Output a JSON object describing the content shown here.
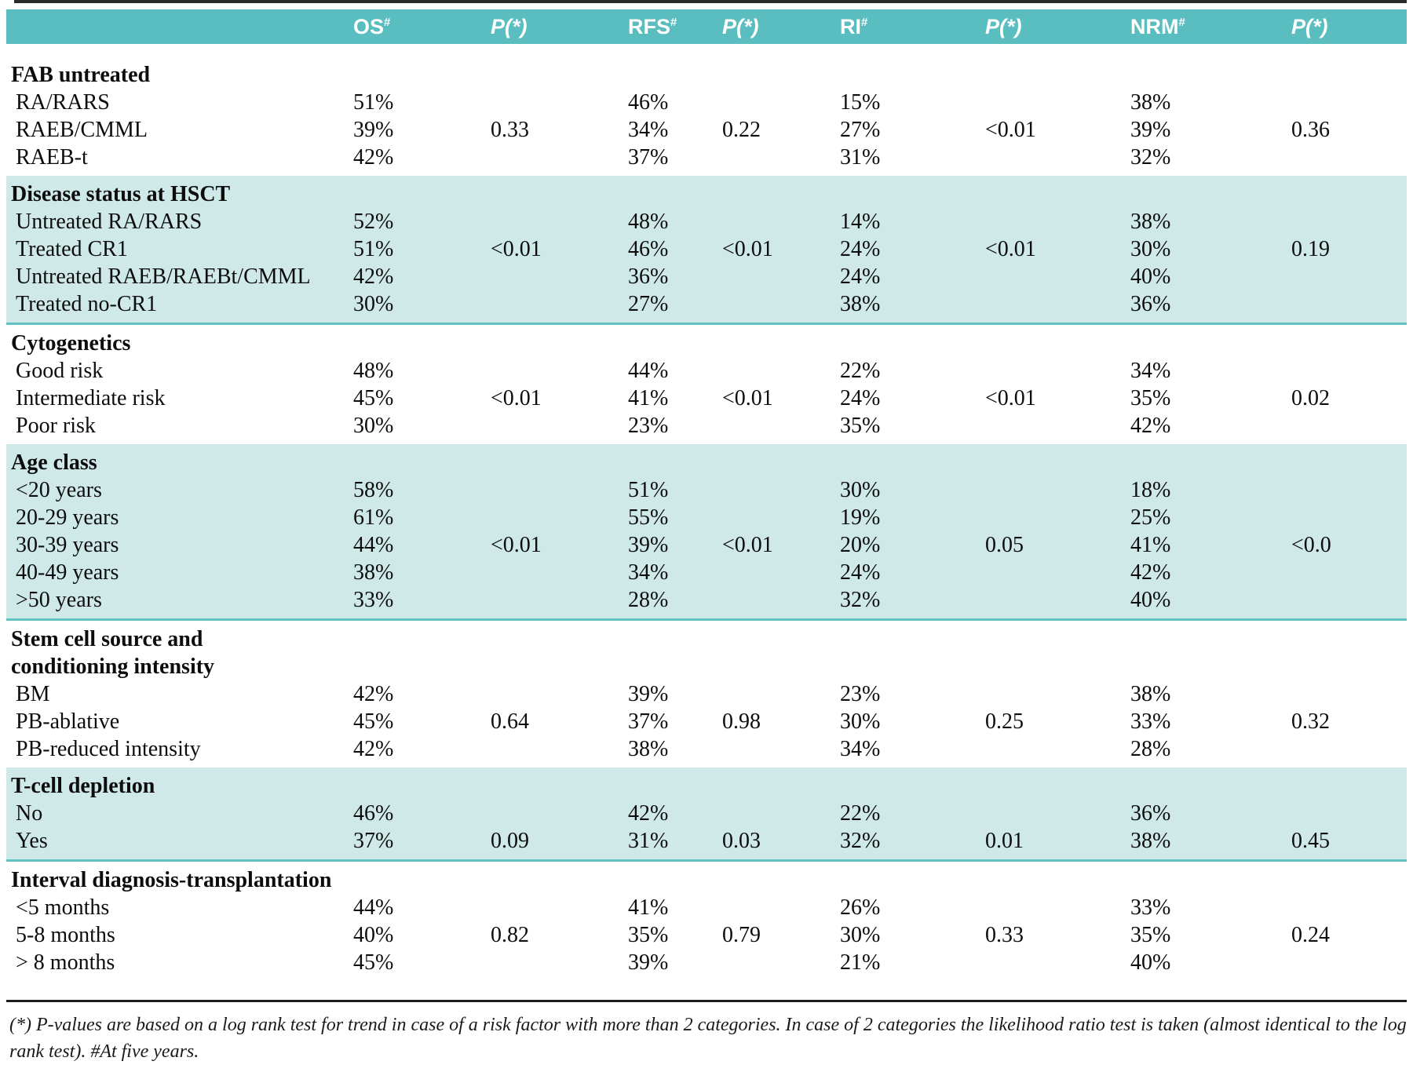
{
  "colors": {
    "header_bg": "#5abdbf",
    "band_bg": "#cfe9e9",
    "band_border": "#63c2c4",
    "rule": "#2b2b2b"
  },
  "table": {
    "columns": [
      {
        "label": "OS",
        "sup": "#",
        "italic": false
      },
      {
        "label": "P(*)",
        "sup": "",
        "italic": true
      },
      {
        "label": "RFS",
        "sup": "#",
        "italic": false
      },
      {
        "label": "P(*)",
        "sup": "",
        "italic": true
      },
      {
        "label": "RI",
        "sup": "#",
        "italic": false
      },
      {
        "label": "P(*)",
        "sup": "",
        "italic": true
      },
      {
        "label": "NRM",
        "sup": "#",
        "italic": false
      },
      {
        "label": "P(*)",
        "sup": "",
        "italic": true
      }
    ],
    "sections": [
      {
        "title_lines": [
          "FAB untreated"
        ],
        "shaded": false,
        "rows": [
          {
            "label": "RA/RARS",
            "values": [
              "51%",
              "",
              "46%",
              "",
              "15%",
              "",
              "38%",
              ""
            ]
          },
          {
            "label": "RAEB/CMML",
            "values": [
              "39%",
              "0.33",
              "34%",
              "0.22",
              "27%",
              "<0.01",
              "39%",
              "0.36"
            ]
          },
          {
            "label": "RAEB-t",
            "values": [
              "42%",
              "",
              "37%",
              "",
              "31%",
              "",
              "32%",
              ""
            ]
          }
        ]
      },
      {
        "title_lines": [
          "Disease status at HSCT"
        ],
        "shaded": true,
        "rows": [
          {
            "label": "Untreated RA/RARS",
            "values": [
              "52%",
              "",
              "48%",
              "",
              "14%",
              "",
              "38%",
              ""
            ]
          },
          {
            "label": "Treated CR1",
            "values": [
              "51%",
              "<0.01",
              "46%",
              "<0.01",
              "24%",
              "<0.01",
              "30%",
              "0.19"
            ]
          },
          {
            "label": "Untreated RAEB/RAEBt/CMML",
            "values": [
              "42%",
              "",
              "36%",
              "",
              "24%",
              "",
              "40%",
              ""
            ]
          },
          {
            "label": "Treated no-CR1",
            "values": [
              "30%",
              "",
              "27%",
              "",
              "38%",
              "",
              "36%",
              ""
            ]
          }
        ]
      },
      {
        "title_lines": [
          "Cytogenetics"
        ],
        "shaded": false,
        "rows": [
          {
            "label": "Good risk",
            "values": [
              "48%",
              "",
              "44%",
              "",
              "22%",
              "",
              "34%",
              ""
            ]
          },
          {
            "label": "Intermediate risk",
            "values": [
              "45%",
              "<0.01",
              "41%",
              "<0.01",
              "24%",
              "<0.01",
              "35%",
              "0.02"
            ]
          },
          {
            "label": "Poor risk",
            "values": [
              "30%",
              "",
              "23%",
              "",
              "35%",
              "",
              "42%",
              ""
            ]
          }
        ]
      },
      {
        "title_lines": [
          "Age class"
        ],
        "shaded": true,
        "rows": [
          {
            "label": "<20 years",
            "values": [
              "58%",
              "",
              "51%",
              "",
              "30%",
              "",
              "18%",
              ""
            ]
          },
          {
            "label": "20-29 years",
            "values": [
              "61%",
              "",
              "55%",
              "",
              "19%",
              "",
              "25%",
              ""
            ]
          },
          {
            "label": "30-39 years",
            "values": [
              "44%",
              "<0.01",
              "39%",
              "<0.01",
              "20%",
              "0.05",
              "41%",
              "<0.0"
            ]
          },
          {
            "label": "40-49 years",
            "values": [
              "38%",
              "",
              "34%",
              "",
              "24%",
              "",
              "42%",
              ""
            ]
          },
          {
            "label": ">50 years",
            "values": [
              "33%",
              "",
              "28%",
              "",
              "32%",
              "",
              "40%",
              ""
            ]
          }
        ]
      },
      {
        "title_lines": [
          "Stem cell source and",
          "conditioning intensity"
        ],
        "shaded": false,
        "rows": [
          {
            "label": "BM",
            "values": [
              "42%",
              "",
              "39%",
              "",
              "23%",
              "",
              "38%",
              ""
            ]
          },
          {
            "label": "PB-ablative",
            "values": [
              "45%",
              "0.64",
              "37%",
              "0.98",
              "30%",
              "0.25",
              "33%",
              "0.32"
            ]
          },
          {
            "label": "PB-reduced intensity",
            "values": [
              "42%",
              "",
              "38%",
              "",
              "34%",
              "",
              "28%",
              ""
            ]
          }
        ]
      },
      {
        "title_lines": [
          "T-cell depletion"
        ],
        "shaded": true,
        "rows": [
          {
            "label": "No",
            "values": [
              "46%",
              "",
              "42%",
              "",
              "22%",
              "",
              "36%",
              ""
            ]
          },
          {
            "label": "Yes",
            "values": [
              "37%",
              "0.09",
              "31%",
              "0.03",
              "32%",
              "0.01",
              "38%",
              "0.45"
            ]
          }
        ]
      },
      {
        "title_lines": [
          "Interval diagnosis-transplantation"
        ],
        "shaded": false,
        "rows": [
          {
            "label": "<5 months",
            "values": [
              "44%",
              "",
              "41%",
              "",
              "26%",
              "",
              "33%",
              ""
            ]
          },
          {
            "label": "5-8 months",
            "values": [
              "40%",
              "0.82",
              "35%",
              "0.79",
              "30%",
              "0.33",
              "35%",
              "0.24"
            ]
          },
          {
            "label": "> 8 months",
            "values": [
              "45%",
              "",
              "39%",
              "",
              "21%",
              "",
              "40%",
              ""
            ]
          }
        ]
      }
    ]
  },
  "footnote": "(*) P-values are based on a log rank test for trend in case of a risk factor with more than 2 categories. In case of 2 categories the likelihood ratio test is taken (almost identical to the log rank test). #At five years."
}
